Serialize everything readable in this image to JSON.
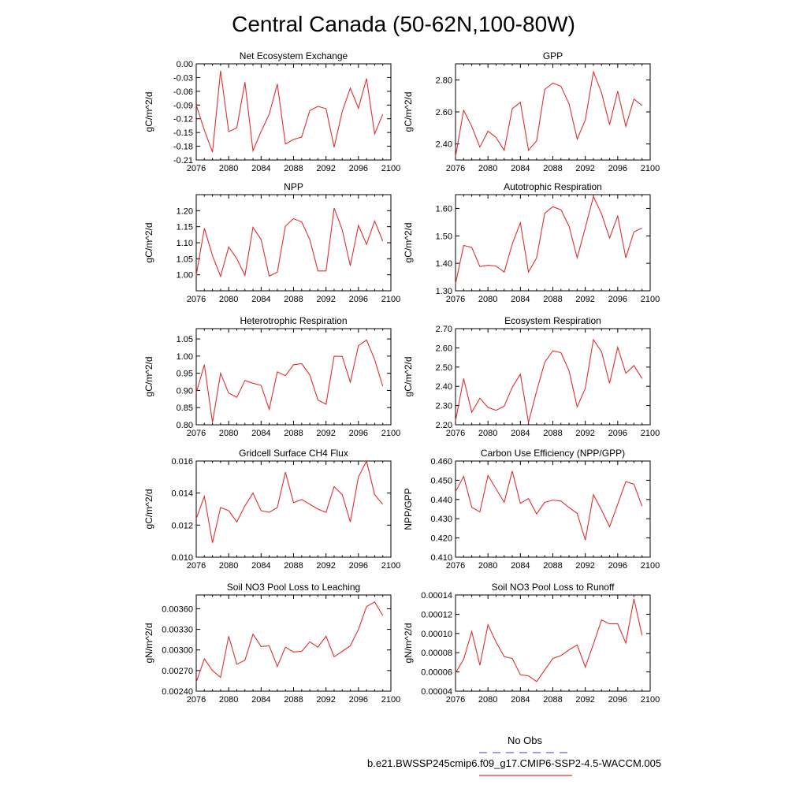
{
  "title": "Central Canada (50-62N,100-80W)",
  "legend": {
    "obs_label": "No Obs",
    "obs_color": "#6666cc",
    "model_label": "b.e21.BWSSP245cmip6.f09_g17.CMIP6-SSP2-4.5-WACCM.005",
    "model_color": "#e03030"
  },
  "chart_data": [
    {
      "type": "line",
      "title": "Net Ecosystem Exchange",
      "ylabel": "gC/m^2/d",
      "xlim": [
        2076,
        2100
      ],
      "xticks": [
        "2076",
        "2080",
        "2084",
        "2088",
        "2092",
        "2096",
        "2100"
      ],
      "ylim": [
        -0.21,
        0.0
      ],
      "yticks": [
        "0.00",
        "-0.03",
        "-0.06",
        "-0.09",
        "-0.12",
        "-0.15",
        "-0.18",
        "-0.21"
      ],
      "x": [
        2076,
        2077,
        2078,
        2079,
        2080,
        2081,
        2082,
        2083,
        2084,
        2085,
        2086,
        2087,
        2088,
        2089,
        2090,
        2091,
        2092,
        2093,
        2094,
        2095,
        2096,
        2097,
        2098,
        2099
      ],
      "values": [
        -0.09,
        -0.145,
        -0.193,
        -0.015,
        -0.148,
        -0.14,
        -0.04,
        -0.19,
        -0.148,
        -0.11,
        -0.044,
        -0.175,
        -0.165,
        -0.16,
        -0.102,
        -0.093,
        -0.098,
        -0.182,
        -0.104,
        -0.053,
        -0.097,
        -0.032,
        -0.153,
        -0.11
      ]
    },
    {
      "type": "line",
      "title": "GPP",
      "ylabel": "gC/m^2/d",
      "xlim": [
        2076,
        2100
      ],
      "xticks": [
        "2076",
        "2080",
        "2084",
        "2088",
        "2092",
        "2096",
        "2100"
      ],
      "ylim": [
        2.3,
        2.9
      ],
      "yticks": [
        "2.80",
        "2.60",
        "2.40"
      ],
      "ytick_values": [
        2.8,
        2.6,
        2.4
      ],
      "x": [
        2076,
        2077,
        2078,
        2079,
        2080,
        2081,
        2082,
        2083,
        2084,
        2085,
        2086,
        2087,
        2088,
        2089,
        2090,
        2091,
        2092,
        2093,
        2094,
        2095,
        2096,
        2097,
        2098,
        2099
      ],
      "values": [
        2.32,
        2.61,
        2.51,
        2.38,
        2.48,
        2.44,
        2.36,
        2.62,
        2.66,
        2.36,
        2.42,
        2.74,
        2.78,
        2.76,
        2.65,
        2.43,
        2.55,
        2.85,
        2.72,
        2.52,
        2.73,
        2.51,
        2.68,
        2.64
      ]
    },
    {
      "type": "line",
      "title": "NPP",
      "ylabel": "gC/m^2/d",
      "xlim": [
        2076,
        2100
      ],
      "xticks": [
        "2076",
        "2080",
        "2084",
        "2088",
        "2092",
        "2096",
        "2100"
      ],
      "ylim": [
        0.95,
        1.25
      ],
      "yticks": [
        "1.20",
        "1.15",
        "1.10",
        "1.05",
        "1.00"
      ],
      "ytick_values": [
        1.2,
        1.15,
        1.1,
        1.05,
        1.0
      ],
      "x": [
        2076,
        2077,
        2078,
        2079,
        2080,
        2081,
        2082,
        2083,
        2084,
        2085,
        2086,
        2087,
        2088,
        2089,
        2090,
        2091,
        2092,
        2093,
        2094,
        2095,
        2096,
        2097,
        2098,
        2099
      ],
      "values": [
        0.998,
        1.145,
        1.06,
        0.995,
        1.087,
        1.05,
        0.998,
        1.148,
        1.11,
        0.996,
        1.008,
        1.152,
        1.175,
        1.165,
        1.11,
        1.012,
        1.012,
        1.208,
        1.14,
        1.028,
        1.154,
        1.095,
        1.168,
        1.105
      ]
    },
    {
      "type": "line",
      "title": "Autotrophic Respiration",
      "ylabel": "gC/m^2/d",
      "xlim": [
        2076,
        2100
      ],
      "xticks": [
        "2076",
        "2080",
        "2084",
        "2088",
        "2092",
        "2096",
        "2100"
      ],
      "ylim": [
        1.3,
        1.65
      ],
      "yticks": [
        "1.60",
        "1.50",
        "1.40",
        "1.30"
      ],
      "ytick_values": [
        1.6,
        1.5,
        1.4,
        1.3
      ],
      "x": [
        2076,
        2077,
        2078,
        2079,
        2080,
        2081,
        2082,
        2083,
        2084,
        2085,
        2086,
        2087,
        2088,
        2089,
        2090,
        2091,
        2092,
        2093,
        2094,
        2095,
        2096,
        2097,
        2098,
        2099
      ],
      "values": [
        1.325,
        1.465,
        1.458,
        1.388,
        1.393,
        1.39,
        1.368,
        1.47,
        1.548,
        1.368,
        1.42,
        1.582,
        1.606,
        1.595,
        1.535,
        1.42,
        1.53,
        1.643,
        1.58,
        1.492,
        1.572,
        1.42,
        1.515,
        1.528
      ]
    },
    {
      "type": "line",
      "title": "Heterotrophic Respiration",
      "ylabel": "gC/m^2/d",
      "xlim": [
        2076,
        2100
      ],
      "xticks": [
        "2076",
        "2080",
        "2084",
        "2088",
        "2092",
        "2096",
        "2100"
      ],
      "ylim": [
        0.8,
        1.08
      ],
      "yticks": [
        "1.05",
        "1.00",
        "0.95",
        "0.90",
        "0.85",
        "0.80"
      ],
      "ytick_values": [
        1.05,
        1.0,
        0.95,
        0.9,
        0.85,
        0.8
      ],
      "x": [
        2076,
        2077,
        2078,
        2079,
        2080,
        2081,
        2082,
        2083,
        2084,
        2085,
        2086,
        2087,
        2088,
        2089,
        2090,
        2091,
        2092,
        2093,
        2094,
        2095,
        2096,
        2097,
        2098,
        2099
      ],
      "values": [
        0.893,
        0.975,
        0.807,
        0.95,
        0.892,
        0.88,
        0.929,
        0.921,
        0.915,
        0.845,
        0.954,
        0.943,
        0.975,
        0.978,
        0.945,
        0.872,
        0.86,
        1.0,
        0.999,
        0.924,
        1.03,
        1.047,
        0.99,
        0.912
      ]
    },
    {
      "type": "line",
      "title": "Ecosystem Respiration",
      "ylabel": "gC/m^2/d",
      "xlim": [
        2076,
        2100
      ],
      "xticks": [
        "2076",
        "2080",
        "2084",
        "2088",
        "2092",
        "2096",
        "2100"
      ],
      "ylim": [
        2.2,
        2.7
      ],
      "yticks": [
        "2.70",
        "2.60",
        "2.50",
        "2.40",
        "2.30",
        "2.20"
      ],
      "ytick_values": [
        2.7,
        2.6,
        2.5,
        2.4,
        2.3,
        2.2
      ],
      "x": [
        2076,
        2077,
        2078,
        2079,
        2080,
        2081,
        2082,
        2083,
        2084,
        2085,
        2086,
        2087,
        2088,
        2089,
        2090,
        2091,
        2092,
        2093,
        2094,
        2095,
        2096,
        2097,
        2098,
        2099
      ],
      "values": [
        2.22,
        2.44,
        2.265,
        2.338,
        2.29,
        2.275,
        2.297,
        2.395,
        2.463,
        2.212,
        2.375,
        2.525,
        2.585,
        2.575,
        2.48,
        2.293,
        2.39,
        2.643,
        2.58,
        2.415,
        2.603,
        2.468,
        2.508,
        2.44
      ]
    },
    {
      "type": "line",
      "title": "Gridcell Surface CH4 Flux",
      "ylabel": "gC/m^2/d",
      "xlim": [
        2076,
        2100
      ],
      "xticks": [
        "2076",
        "2080",
        "2084",
        "2088",
        "2092",
        "2096",
        "2100"
      ],
      "ylim": [
        0.01,
        0.016
      ],
      "yticks": [
        "0.016",
        "0.014",
        "0.012",
        "0.010"
      ],
      "ytick_values": [
        0.016,
        0.014,
        0.012,
        0.01
      ],
      "x": [
        2076,
        2077,
        2078,
        2079,
        2080,
        2081,
        2082,
        2083,
        2084,
        2085,
        2086,
        2087,
        2088,
        2089,
        2090,
        2091,
        2092,
        2093,
        2094,
        2095,
        2096,
        2097,
        2098,
        2099
      ],
      "values": [
        0.0124,
        0.0138,
        0.0109,
        0.0131,
        0.0129,
        0.0122,
        0.0132,
        0.014,
        0.0129,
        0.0128,
        0.0131,
        0.0153,
        0.0134,
        0.0136,
        0.0133,
        0.013,
        0.0128,
        0.0144,
        0.0139,
        0.0122,
        0.015,
        0.016,
        0.0139,
        0.0133
      ]
    },
    {
      "type": "line",
      "title": "Carbon Use Efficiency (NPP/GPP)",
      "ylabel": "NPP/GPP",
      "xlim": [
        2076,
        2100
      ],
      "xticks": [
        "2076",
        "2080",
        "2084",
        "2088",
        "2092",
        "2096",
        "2100"
      ],
      "ylim": [
        0.41,
        0.46
      ],
      "yticks": [
        "0.460",
        "0.450",
        "0.440",
        "0.430",
        "0.420",
        "0.410"
      ],
      "ytick_values": [
        0.46,
        0.45,
        0.44,
        0.43,
        0.42,
        0.41
      ],
      "x": [
        2076,
        2077,
        2078,
        2079,
        2080,
        2081,
        2082,
        2083,
        2084,
        2085,
        2086,
        2087,
        2088,
        2089,
        2090,
        2091,
        2092,
        2093,
        2094,
        2095,
        2096,
        2097,
        2098,
        2099
      ],
      "values": [
        0.444,
        0.452,
        0.436,
        0.4335,
        0.4525,
        0.4455,
        0.4385,
        0.4548,
        0.438,
        0.4405,
        0.4325,
        0.4385,
        0.4397,
        0.4392,
        0.4358,
        0.4328,
        0.4188,
        0.4425,
        0.4345,
        0.4258,
        0.4375,
        0.4493,
        0.448,
        0.4365
      ]
    },
    {
      "type": "line",
      "title": "Soil NO3 Pool Loss to Leaching",
      "ylabel": "gN/m^2/d",
      "xlim": [
        2076,
        2100
      ],
      "xticks": [
        "2076",
        "2080",
        "2084",
        "2088",
        "2092",
        "2096",
        "2100"
      ],
      "ylim": [
        0.0024,
        0.0038
      ],
      "yticks": [
        "0.00360",
        "0.00330",
        "0.00300",
        "0.00270",
        "0.00240"
      ],
      "ytick_values": [
        0.0036,
        0.0033,
        0.003,
        0.0027,
        0.0024
      ],
      "x": [
        2076,
        2077,
        2078,
        2079,
        2080,
        2081,
        2082,
        2083,
        2084,
        2085,
        2086,
        2087,
        2088,
        2089,
        2090,
        2091,
        2092,
        2093,
        2094,
        2095,
        2096,
        2097,
        2098,
        2099
      ],
      "values": [
        0.00253,
        0.00287,
        0.0027,
        0.0026,
        0.0032,
        0.00279,
        0.00285,
        0.00323,
        0.00305,
        0.00306,
        0.00276,
        0.00304,
        0.00297,
        0.00298,
        0.00312,
        0.00304,
        0.0032,
        0.0029,
        0.00298,
        0.00306,
        0.0033,
        0.00363,
        0.0037,
        0.0035
      ]
    },
    {
      "type": "line",
      "title": "Soil NO3 Pool Loss to Runoff",
      "ylabel": "gN/m^2/d",
      "xlim": [
        2076,
        2100
      ],
      "xticks": [
        "2076",
        "2080",
        "2084",
        "2088",
        "2092",
        "2096",
        "2100"
      ],
      "ylim": [
        4e-05,
        0.00014
      ],
      "yticks": [
        "0.00014",
        "0.00012",
        "0.00010",
        "0.00008",
        "0.00006",
        "0.00004"
      ],
      "ytick_values": [
        0.00014,
        0.00012,
        0.0001,
        8e-05,
        6e-05,
        4e-05
      ],
      "x": [
        2076,
        2077,
        2078,
        2079,
        2080,
        2081,
        2082,
        2083,
        2084,
        2085,
        2086,
        2087,
        2088,
        2089,
        2090,
        2091,
        2092,
        2093,
        2094,
        2095,
        2096,
        2097,
        2098,
        2099
      ],
      "values": [
        5.9e-05,
        7.3e-05,
        0.000102,
        6.7e-05,
        0.000109,
        9.1e-05,
        7.6e-05,
        7.4e-05,
        5.7e-05,
        5.6e-05,
        5e-05,
        6.2e-05,
        7.4e-05,
        7.7e-05,
        8.3e-05,
        8.8e-05,
        6.5e-05,
        8.9e-05,
        0.000114,
        0.00011,
        0.00011,
        9e-05,
        0.000136,
        9.8e-05
      ]
    }
  ]
}
